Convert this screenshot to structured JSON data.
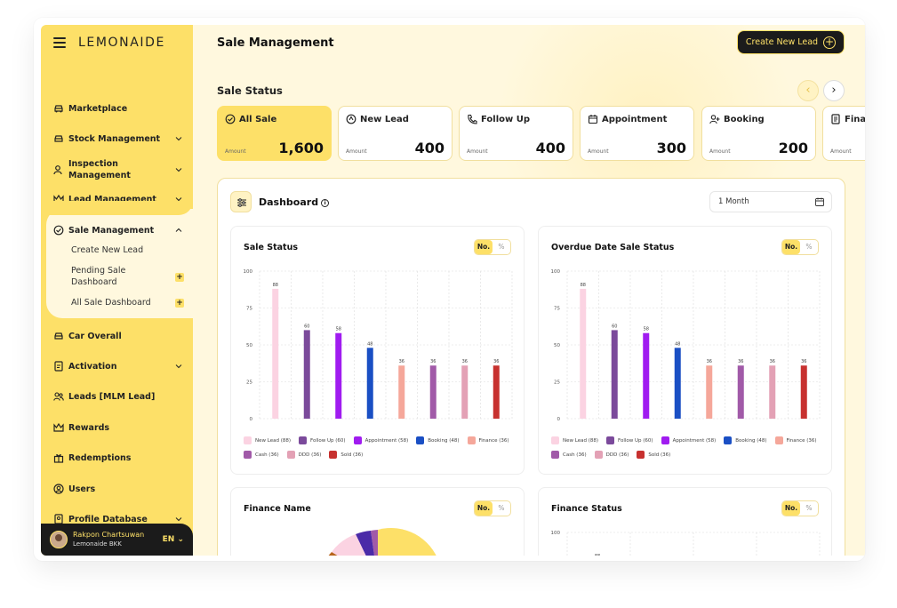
{
  "brand": "LEMONAIDE",
  "nav": {
    "marketplace": "Marketplace",
    "stock": "Stock Management",
    "inspection": "Inspection Management",
    "lead": "Lead Management",
    "sale": "Sale Management",
    "sub": [
      "Create New Lead",
      "Pending Sale Dashboard",
      "All Sale Dashboard"
    ],
    "car": "Car Overall",
    "activation": "Activation",
    "leads_mlm": "Leads [MLM Lead]",
    "rewards": "Rewards",
    "redemptions": "Redemptions",
    "users": "Users",
    "profile": "Profile Database"
  },
  "user": {
    "name": "Rakpon Chartsuwan",
    "company": "Lemonaide BKK",
    "lang": "EN"
  },
  "header": {
    "title": "Sale Management",
    "create_button": "Create New Lead"
  },
  "status": {
    "title": "Sale Status",
    "amount_label": "Amount",
    "cards": [
      {
        "label": "All Sale",
        "value": "1,600",
        "icon": "car-check-icon"
      },
      {
        "label": "New Lead",
        "value": "400",
        "icon": "new-lead-icon"
      },
      {
        "label": "Follow Up",
        "value": "400",
        "icon": "phone-icon"
      },
      {
        "label": "Appointment",
        "value": "300",
        "icon": "calendar-icon"
      },
      {
        "label": "Booking",
        "value": "200",
        "icon": "user-plus-icon"
      },
      {
        "label": "Finance",
        "value": "",
        "icon": "document-icon"
      }
    ]
  },
  "dashboard": {
    "title": "Dashboard",
    "period": "1 Month",
    "toggle_no": "No.",
    "toggle_pct": "%",
    "colors": {
      "accent": "#FDE068",
      "new_lead": "#FBD3E2",
      "follow_up": "#7B4A9B",
      "appointment": "#A01CF0",
      "booking": "#1A4FC4",
      "finance": "#F5A79A",
      "cash": "#A15AA8",
      "ddd": "#E3A1B5",
      "sold": "#C7312F"
    }
  },
  "chart_data": [
    {
      "type": "bar",
      "title": "Sale Status",
      "categories": [
        "New Lead",
        "Follow Up",
        "Appointment",
        "Booking",
        "Finance",
        "Cash",
        "DDD",
        "Sold"
      ],
      "values": [
        88,
        60,
        58,
        48,
        36,
        36,
        36,
        36
      ],
      "legend": [
        "New Lead (88)",
        "Follow Up (60)",
        "Appointment (58)",
        "Booking (48)",
        "Finance (36)",
        "Cash (36)",
        "DDD (36)",
        "Sold (36)"
      ],
      "ylim": [
        0,
        100
      ],
      "yticks": [
        "0",
        "25",
        "50",
        "75",
        "100"
      ],
      "grid": true,
      "legend_position": "bottom"
    },
    {
      "type": "bar",
      "title": "Overdue Date Sale Status",
      "categories": [
        "New Lead",
        "Follow Up",
        "Appointment",
        "Booking",
        "Finance",
        "Cash",
        "DDD",
        "Sold"
      ],
      "values": [
        88,
        60,
        58,
        48,
        36,
        36,
        36,
        36
      ],
      "legend": [
        "New Lead (88)",
        "Follow Up (60)",
        "Appointment (58)",
        "Booking (48)",
        "Finance (36)",
        "Cash (36)",
        "DDD (36)",
        "Sold (36)"
      ],
      "ylim": [
        0,
        100
      ],
      "yticks": [
        "0",
        "25",
        "50",
        "75",
        "100"
      ],
      "grid": true,
      "legend_position": "bottom"
    },
    {
      "type": "pie",
      "title": "Finance Name"
    },
    {
      "type": "bar",
      "title": "Finance Status",
      "yticks": [
        "100"
      ],
      "visible_values": [
        88
      ]
    }
  ]
}
